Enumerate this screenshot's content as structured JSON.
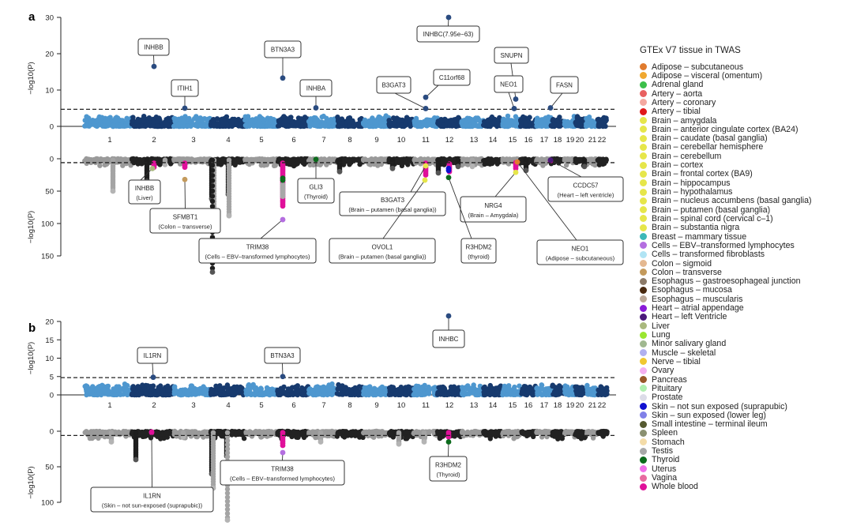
{
  "chart_data": [
    {
      "panel_label": "a",
      "type": "scatter",
      "subtype": "manhattan-mirrored",
      "chromosomes": [
        "1",
        "2",
        "3",
        "4",
        "5",
        "6",
        "7",
        "8",
        "9",
        "10",
        "11",
        "12",
        "13",
        "14",
        "15",
        "16",
        "17",
        "18",
        "19",
        "20",
        "21",
        "22"
      ],
      "top": {
        "ylabel": "−log10(P)",
        "ylim": [
          0,
          30
        ],
        "yticks": [
          "0",
          "10",
          "20",
          "30"
        ],
        "threshold": 4.7,
        "colors": [
          "#4e97cf",
          "#173a6e"
        ],
        "annotations": [
          {
            "label": "INHBB",
            "chr": "2",
            "value": 16.5
          },
          {
            "label": "ITIH1",
            "chr": "3",
            "value": 5.0
          },
          {
            "label": "BTN3A3",
            "chr": "6",
            "value": 13.3
          },
          {
            "label": "INHBA",
            "chr": "7",
            "value": 5.1
          },
          {
            "label": "B3GAT3",
            "chr": "11",
            "value": 4.9
          },
          {
            "label": "C11orf68",
            "chr": "11",
            "value": 8.0
          },
          {
            "label": "INHBC(7.95e−63)",
            "chr": "12",
            "value": 30
          },
          {
            "label": "SNUPN",
            "chr": "15",
            "value": 7.5
          },
          {
            "label": "NEO1",
            "chr": "15",
            "value": 4.9
          },
          {
            "label": "FASN",
            "chr": "17",
            "value": 5.1
          }
        ]
      },
      "bottom": {
        "ylabel": "−log10(P)",
        "ylim": [
          0,
          150
        ],
        "yticks": [
          "0",
          "50",
          "100",
          "150"
        ],
        "threshold": 6,
        "colors": [
          "#9a9a9a",
          "#222222"
        ],
        "annotations": [
          {
            "label": "INHBB",
            "tissue": "(Liver)",
            "chr": "2",
            "value": 15,
            "color": "#a9b87e"
          },
          {
            "label": "SFMBT1",
            "tissue": "(Colon – transverse)",
            "chr": "3",
            "value": 32,
            "color": "#c49a5c"
          },
          {
            "label": "GLI3",
            "tissue": "(Thyroid)",
            "chr": "7",
            "value": 1,
            "color": "#0c6a1c"
          },
          {
            "label": "TRIM38",
            "tissue": "(Cells – EBV–transformed lymphocytes)",
            "chr": "6",
            "value": 94,
            "color": "#b46ee0"
          },
          {
            "label": "B3GAT3",
            "tissue": "(Brain – putamen (basal ganglia))",
            "chr": "11",
            "value": 11,
            "color": "#e6e64a"
          },
          {
            "label": "OVOL1",
            "tissue": "(Brain – putamen (basal ganglia))",
            "chr": "11",
            "value": 33,
            "color": "#e6e64a"
          },
          {
            "label": "NRG4",
            "tissue": "(Brain – Amygdala)",
            "chr": "15",
            "value": 21,
            "color": "#e6e64a"
          },
          {
            "label": "R3HDM2",
            "tissue": "(thyroid)",
            "chr": "12",
            "value": 29,
            "color": "#0c6a1c"
          },
          {
            "label": "NEO1",
            "tissue": "(Adipose – subcutaneous)",
            "chr": "15",
            "value": 5,
            "color": "#e07b2e"
          },
          {
            "label": "CCDC57",
            "tissue": "(Heart – left ventricle)",
            "chr": "17",
            "value": 2,
            "color": "#4b1a7a"
          }
        ]
      }
    },
    {
      "panel_label": "b",
      "type": "scatter",
      "subtype": "manhattan-mirrored",
      "chromosomes": [
        "1",
        "2",
        "3",
        "4",
        "5",
        "6",
        "7",
        "8",
        "9",
        "10",
        "11",
        "12",
        "13",
        "14",
        "15",
        "16",
        "17",
        "18",
        "19",
        "20",
        "21",
        "22"
      ],
      "top": {
        "ylabel": "−log10(P)",
        "ylim": [
          0,
          20
        ],
        "yticks": [
          "0",
          "5",
          "10",
          "15",
          "20"
        ],
        "threshold": 4.7,
        "colors": [
          "#4e97cf",
          "#173a6e"
        ],
        "annotations": [
          {
            "label": "IL1RN",
            "chr": "2",
            "value": 4.8
          },
          {
            "label": "BTN3A3",
            "chr": "6",
            "value": 5.0
          },
          {
            "label": "INHBC",
            "chr": "12",
            "value": 21.5
          }
        ]
      },
      "bottom": {
        "ylabel": "−log10(P)",
        "ylim": [
          0,
          100
        ],
        "yticks": [
          "0",
          "50",
          "100"
        ],
        "threshold": 6,
        "colors": [
          "#9a9a9a",
          "#222222"
        ],
        "annotations": [
          {
            "label": "IL1RN",
            "tissue": "(Skin – not sun-exposed (suprapubic))",
            "chr": "2",
            "value": 1,
            "color": "#e0109a"
          },
          {
            "label": "TRIM38",
            "tissue": "(Cells – EBV–transformed lymphocytes)",
            "chr": "6",
            "value": 30,
            "color": "#b46ee0"
          },
          {
            "label": "R3HDM2",
            "tissue": "(Thyroid)",
            "chr": "12",
            "value": 15,
            "color": "#0c6a1c"
          }
        ]
      }
    }
  ],
  "legend": {
    "title": "GTEx V7 tissue in TWAS",
    "position": "right",
    "items": [
      {
        "label": "Adipose – subcutaneous",
        "color": "#e07b2e"
      },
      {
        "label": "Adipose – visceral (omentum)",
        "color": "#f0a830"
      },
      {
        "label": "Adrenal gland",
        "color": "#3cbf4a"
      },
      {
        "label": "Artery – aorta",
        "color": "#e86060"
      },
      {
        "label": "Artery – coronary",
        "color": "#f4a8a0"
      },
      {
        "label": "Artery – tibial",
        "color": "#e01818"
      },
      {
        "label": "Brain – amygdala",
        "color": "#e6e64a"
      },
      {
        "label": "Brain – anterior cingulate cortex (BA24)",
        "color": "#e6e64a"
      },
      {
        "label": "Brain – caudate (basal ganglia)",
        "color": "#e6e64a"
      },
      {
        "label": "Brain – cerebellar hemisphere",
        "color": "#e6e64a"
      },
      {
        "label": "Brain – cerebellum",
        "color": "#e6e64a"
      },
      {
        "label": "Brain – cortex",
        "color": "#e6e64a"
      },
      {
        "label": "Brain – frontal cortex (BA9)",
        "color": "#e6e64a"
      },
      {
        "label": "Brain – hippocampus",
        "color": "#e6e64a"
      },
      {
        "label": "Brain – hypothalamus",
        "color": "#e6e64a"
      },
      {
        "label": "Brain – nucleus accumbens (basal ganglia)",
        "color": "#e6e64a"
      },
      {
        "label": "Brain – putamen (basal ganglia)",
        "color": "#e6e64a"
      },
      {
        "label": "Brain – spinal cord (cervical c–1)",
        "color": "#e6e64a"
      },
      {
        "label": "Brain – substantia nigra",
        "color": "#e6e64a"
      },
      {
        "label": "Breast – mammary tissue",
        "color": "#3cb8b8"
      },
      {
        "label": "Cells – EBV–transformed lymphocytes",
        "color": "#b46ee0"
      },
      {
        "label": "Cells – transformed fibroblasts",
        "color": "#b0e4f4"
      },
      {
        "label": "Colon – sigmoid",
        "color": "#e4b890"
      },
      {
        "label": "Colon – transverse",
        "color": "#c49a5c"
      },
      {
        "label": "Esophagus – gastroesophageal junction",
        "color": "#8c7a68"
      },
      {
        "label": "Esophagus – mucosa",
        "color": "#4a2a10"
      },
      {
        "label": "Esophagus – muscularis",
        "color": "#bca898"
      },
      {
        "label": "Heart – atrial appendage",
        "color": "#8a1ad8"
      },
      {
        "label": "Heart – left Ventricle",
        "color": "#4b1a7a"
      },
      {
        "label": "Liver",
        "color": "#a9b87e"
      },
      {
        "label": "Lung",
        "color": "#9ae630"
      },
      {
        "label": "Minor salivary gland",
        "color": "#a0b890"
      },
      {
        "label": "Muscle – skeletal",
        "color": "#b0b0f0"
      },
      {
        "label": "Nerve – tibial",
        "color": "#f0c830"
      },
      {
        "label": "Ovary",
        "color": "#f4b0f0"
      },
      {
        "label": "Pancreas",
        "color": "#98582a"
      },
      {
        "label": "Pituitary",
        "color": "#b0f0b0"
      },
      {
        "label": "Prostate",
        "color": "#dcdce8"
      },
      {
        "label": "Skin – not sun exposed (suprapubic)",
        "color": "#1010d0"
      },
      {
        "label": "Skin – sun exposed (lower leg)",
        "color": "#8080e8"
      },
      {
        "label": "Small intestine – terminal ileum",
        "color": "#555a30"
      },
      {
        "label": "Spleen",
        "color": "#8a9070"
      },
      {
        "label": "Stomach",
        "color": "#f4dca8"
      },
      {
        "label": "Testis",
        "color": "#a8a8a8"
      },
      {
        "label": "Thyroid",
        "color": "#0c6a1c"
      },
      {
        "label": "Uterus",
        "color": "#f070e8"
      },
      {
        "label": "Vagina",
        "color": "#e86aa0"
      },
      {
        "label": "Whole blood",
        "color": "#e0109a"
      }
    ]
  }
}
